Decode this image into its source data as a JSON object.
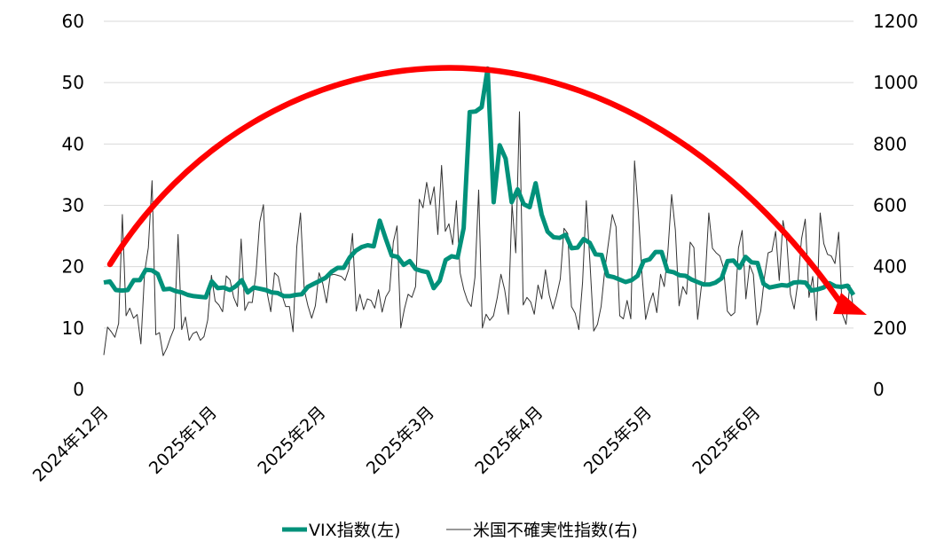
{
  "chart_data": {
    "type": "line",
    "x_axis": {
      "tick_labels": [
        "2024年12月",
        "2025年1月",
        "2025年2月",
        "2025年3月",
        "2025年4月",
        "2025年5月",
        "2025年6月"
      ]
    },
    "y_left": {
      "range": [
        0,
        60
      ],
      "ticks": [
        0,
        10,
        20,
        30,
        40,
        50,
        60
      ],
      "tick_labels": [
        "0",
        "10",
        "20",
        "30",
        "40",
        "50",
        "60"
      ]
    },
    "y_right": {
      "range": [
        0,
        1200
      ],
      "ticks": [
        0,
        200,
        400,
        600,
        800,
        1000,
        1200
      ],
      "tick_labels": [
        "0",
        "200",
        "400",
        "600",
        "800",
        "1000",
        "1200"
      ]
    },
    "grid": "horizontal",
    "legend_position": "bottom",
    "series": [
      {
        "name": "VIX指数(左)",
        "axis": "left",
        "color": "#00917A",
        "values": [
          17.4,
          17.6,
          16.2,
          16.1,
          16.2,
          17.8,
          17.8,
          19.5,
          19.4,
          18.8,
          16.3,
          16.4,
          16.0,
          15.8,
          15.4,
          15.2,
          15.1,
          15.0,
          17.6,
          16.5,
          16.6,
          16.2,
          16.8,
          17.8,
          15.8,
          16.6,
          16.4,
          16.2,
          15.8,
          15.7,
          15.2,
          15.2,
          15.4,
          15.5,
          16.7,
          17.2,
          17.7,
          18.2,
          19.2,
          19.8,
          19.8,
          21.5,
          22.6,
          23.2,
          23.5,
          23.3,
          27.5,
          24.6,
          21.8,
          21.6,
          20.3,
          20.9,
          19.6,
          19.3,
          19.1,
          16.5,
          17.7,
          21.1,
          21.7,
          21.5,
          26.3,
          45.2,
          45.3,
          46.0,
          52.3,
          30.5,
          39.8,
          37.6,
          30.5,
          32.6,
          30.2,
          29.7,
          33.6,
          28.5,
          25.7,
          24.8,
          24.7,
          25.2,
          23.0,
          23.1,
          24.5,
          23.9,
          22.0,
          21.9,
          18.5,
          18.3,
          17.9,
          17.5,
          17.8,
          18.5,
          20.9,
          21.2,
          22.4,
          22.4,
          19.3,
          19.1,
          18.6,
          18.5,
          17.9,
          17.5,
          17.1,
          17.1,
          17.4,
          18.1,
          20.9,
          21.0,
          19.8,
          21.6,
          20.7,
          20.6,
          17.2,
          16.6,
          16.8,
          17.0,
          16.9,
          17.4,
          17.5,
          17.4,
          16.1,
          16.3,
          16.6,
          17.3,
          16.8,
          16.7,
          16.9,
          15.4
        ]
      },
      {
        "name": "米国不確実性指数(右)",
        "axis": "right",
        "color": "#333333",
        "values": [
          112,
          203,
          188,
          170,
          215,
          570,
          240,
          265,
          232,
          244,
          148,
          382,
          462,
          680,
          178,
          185,
          110,
          135,
          170,
          200,
          505,
          195,
          236,
          160,
          182,
          188,
          160,
          172,
          226,
          372,
          288,
          275,
          253,
          370,
          357,
          300,
          270,
          490,
          257,
          284,
          283,
          377,
          545,
          602,
          315,
          253,
          380,
          368,
          308,
          270,
          270,
          188,
          465,
          575,
          325,
          272,
          232,
          272,
          380,
          345,
          282,
          372,
          375,
          372,
          368,
          355,
          392,
          508,
          255,
          310,
          260,
          295,
          290,
          265,
          325,
          252,
          302,
          322,
          480,
          533,
          200,
          262,
          310,
          300,
          335,
          620,
          592,
          675,
          602,
          660,
          505,
          730,
          515,
          540,
          472,
          615,
          380,
          325,
          288,
          270,
          365,
          650,
          200,
          245,
          225,
          240,
          298,
          375,
          325,
          245,
          605,
          445,
          905,
          275,
          300,
          285,
          245,
          340,
          295,
          390,
          308,
          262,
          305,
          360,
          525,
          508,
          270,
          248,
          195,
          348,
          615,
          410,
          190,
          212,
          270,
          390,
          480,
          570,
          530,
          240,
          230,
          290,
          230,
          745,
          580,
          375,
          228,
          280,
          315,
          250,
          375,
          335,
          450,
          635,
          520,
          272,
          335,
          310,
          480,
          462,
          228,
          335,
          352,
          575,
          460,
          445,
          435,
          395,
          255,
          240,
          250,
          460,
          518,
          295,
          405,
          375,
          210,
          255,
          365,
          445,
          450,
          515,
          355,
          550,
          485,
          310,
          262,
          350,
          490,
          555,
          300,
          368,
          225,
          575,
          475,
          440,
          435,
          410,
          512,
          245,
          212,
          340,
          262
        ]
      }
    ]
  }
}
